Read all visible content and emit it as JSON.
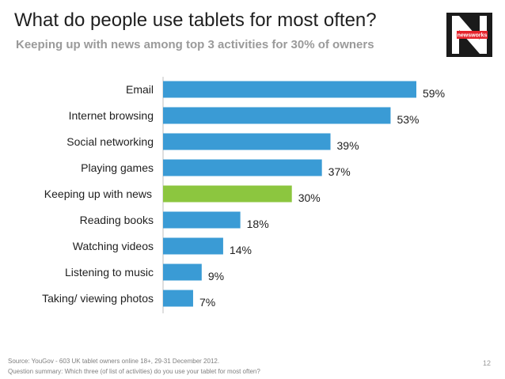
{
  "header": {
    "title": "What do people use tablets for most often?",
    "subtitle": "Keeping up with news among top 3 activities for 30% of owners",
    "logo_text": "newsworks"
  },
  "chart_data": {
    "type": "bar",
    "orientation": "horizontal",
    "categories": [
      "Email",
      "Internet browsing",
      "Social networking",
      "Playing games",
      "Keeping up with news",
      "Reading books",
      "Watching videos",
      "Listening to music",
      "Taking/ viewing photos"
    ],
    "values": [
      59,
      53,
      39,
      37,
      30,
      18,
      14,
      9,
      7
    ],
    "value_labels": [
      "59%",
      "53%",
      "39%",
      "37%",
      "30%",
      "18%",
      "14%",
      "9%",
      "7%"
    ],
    "highlight_category": "Keeping up with news",
    "unit": "%",
    "xlim": [
      0,
      59
    ],
    "grid": false,
    "colors": {
      "bar": "#3a9bd5",
      "highlight": "#8cc63f",
      "axis": "#bfbfbf",
      "label": "#1f1f1f"
    }
  },
  "footer": {
    "source": "Source: YouGov - 603 UK tablet owners online 18+, 29-31 December 2012.",
    "question": "Question summary: Which three (of list of activities) do you use your tablet for most often?",
    "page_number": "12"
  }
}
